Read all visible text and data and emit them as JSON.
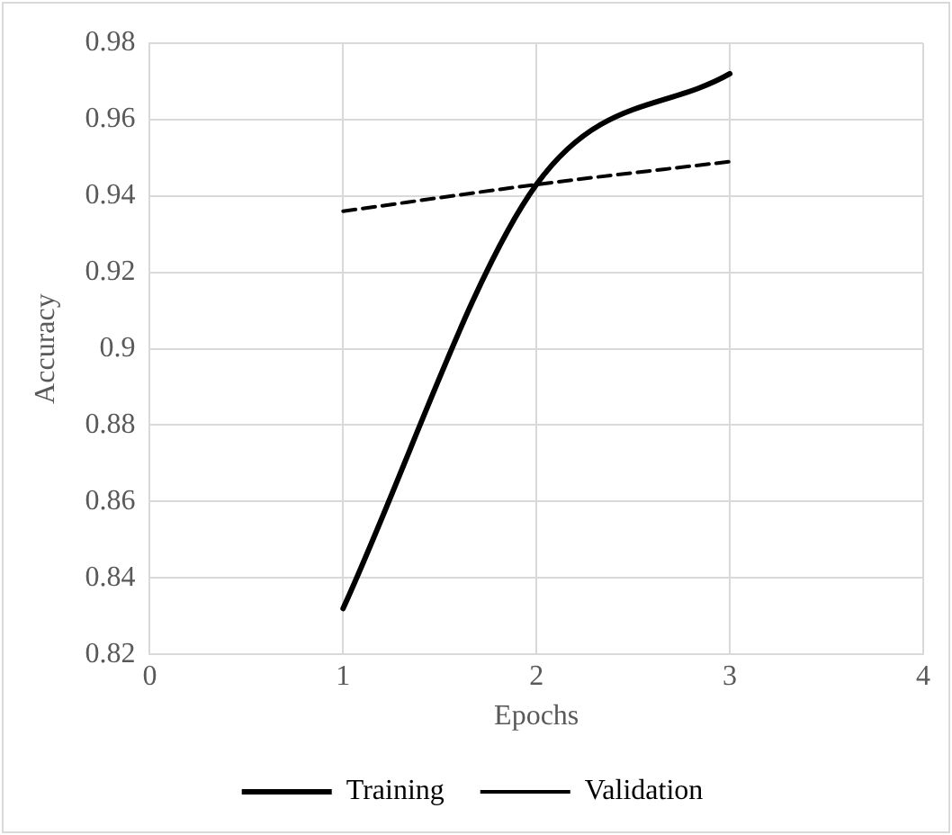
{
  "chart_data": {
    "type": "line",
    "xlabel": "Epochs",
    "ylabel": "Accuracy",
    "x": [
      1,
      2,
      3
    ],
    "series": [
      {
        "name": "Training",
        "color": "#000000",
        "values": [
          0.832,
          0.943,
          0.972
        ],
        "line_style": "solid"
      },
      {
        "name": "Validation",
        "color": "#000000",
        "values": [
          0.936,
          0.943,
          0.949
        ],
        "line_style": "dashed"
      }
    ],
    "xlim": [
      0,
      4
    ],
    "xticks": [
      0,
      1,
      2,
      3,
      4
    ],
    "ylim": [
      0.82,
      0.98
    ],
    "yticks": [
      0.82,
      0.84,
      0.86,
      0.88,
      0.9,
      0.92,
      0.94,
      0.96,
      0.98
    ],
    "grid": true,
    "legend": "bottom",
    "marker": "none"
  }
}
